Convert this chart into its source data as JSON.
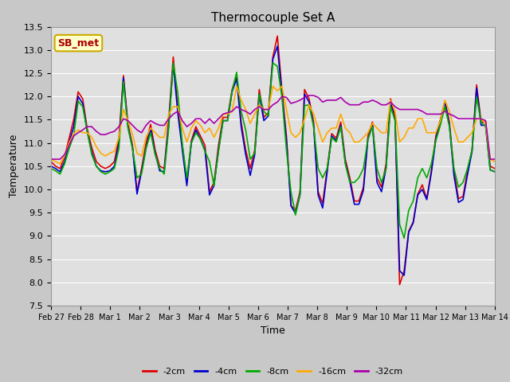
{
  "title": "Thermocouple Set A",
  "xlabel": "Time",
  "ylabel": "Temperature",
  "ylim": [
    7.5,
    13.5
  ],
  "fig_facecolor": "#c8c8c8",
  "plot_bg_color": "#e0e0e0",
  "annotation_text": "SB_met",
  "annotation_color": "#aa0000",
  "annotation_bg": "#ffffcc",
  "annotation_border": "#ccaa00",
  "series_colors": {
    "-2cm": "#dd0000",
    "-4cm": "#0000cc",
    "-8cm": "#00aa00",
    "-16cm": "#ffaa00",
    "-32cm": "#aa00aa"
  },
  "x_tick_labels": [
    "Feb 27",
    "Feb 28",
    "Mar 1",
    "Mar 2",
    "Mar 3",
    "Mar 4",
    "Mar 5",
    "Mar 6",
    "Mar 7",
    "Mar 8",
    "Mar 9",
    "Mar 10",
    "Mar 11",
    "Mar 12",
    "Mar 13",
    "Mar 14"
  ],
  "x_tick_positions": [
    0,
    1,
    2,
    3,
    4,
    5,
    6,
    7,
    8,
    9,
    10,
    11,
    12,
    13,
    14,
    15
  ],
  "y_ticks": [
    7.5,
    8.0,
    8.5,
    9.0,
    9.5,
    10.0,
    10.5,
    11.0,
    11.5,
    12.0,
    12.5,
    13.0,
    13.5
  ],
  "series": {
    "-2cm": [
      10.6,
      10.5,
      10.45,
      10.7,
      11.1,
      11.5,
      12.1,
      11.95,
      11.3,
      10.9,
      10.6,
      10.5,
      10.45,
      10.5,
      10.6,
      11.1,
      12.45,
      11.4,
      10.95,
      9.95,
      10.45,
      11.0,
      11.4,
      10.85,
      10.5,
      10.45,
      11.5,
      12.85,
      11.75,
      10.95,
      10.15,
      11.05,
      11.35,
      11.15,
      10.95,
      9.95,
      10.15,
      10.95,
      11.55,
      11.55,
      12.15,
      12.45,
      11.45,
      10.85,
      10.45,
      10.85,
      12.15,
      11.55,
      11.65,
      12.85,
      13.3,
      12.15,
      11.15,
      9.65,
      9.55,
      9.95,
      12.15,
      11.95,
      11.45,
      9.95,
      9.7,
      10.45,
      11.2,
      11.1,
      11.45,
      10.65,
      10.25,
      9.75,
      9.75,
      10.05,
      11.15,
      11.45,
      10.25,
      10.05,
      10.55,
      11.95,
      11.55,
      7.95,
      8.25,
      9.1,
      9.3,
      9.9,
      10.1,
      9.8,
      10.4,
      11.15,
      11.5,
      11.9,
      11.45,
      10.4,
      9.8,
      9.85,
      10.4,
      10.85,
      12.25,
      11.45,
      11.45,
      10.5,
      10.45
    ],
    "-4cm": [
      10.5,
      10.45,
      10.38,
      10.6,
      11.0,
      11.35,
      12.0,
      11.85,
      11.25,
      10.8,
      10.5,
      10.4,
      10.38,
      10.4,
      10.5,
      11.0,
      12.4,
      11.35,
      10.9,
      9.9,
      10.38,
      10.9,
      11.3,
      10.78,
      10.4,
      10.38,
      11.4,
      12.7,
      11.65,
      10.85,
      10.08,
      11.0,
      11.28,
      11.08,
      10.85,
      9.88,
      10.08,
      10.85,
      11.48,
      11.48,
      12.1,
      12.38,
      11.35,
      10.75,
      10.3,
      10.75,
      12.05,
      11.48,
      11.58,
      12.8,
      13.08,
      12.05,
      11.05,
      9.65,
      9.48,
      9.88,
      12.05,
      11.88,
      11.38,
      9.88,
      9.6,
      10.38,
      11.15,
      11.05,
      11.38,
      10.58,
      10.18,
      9.68,
      9.68,
      9.98,
      11.08,
      11.38,
      10.15,
      9.95,
      10.45,
      11.88,
      11.48,
      8.25,
      8.15,
      9.08,
      9.28,
      9.88,
      10.0,
      9.78,
      10.35,
      11.08,
      11.48,
      11.88,
      11.38,
      10.3,
      9.72,
      9.78,
      10.32,
      10.82,
      12.18,
      11.38,
      11.38,
      10.42,
      10.38
    ],
    "-8cm": [
      10.45,
      10.4,
      10.33,
      10.55,
      10.88,
      11.15,
      11.9,
      11.78,
      11.25,
      10.75,
      10.5,
      10.38,
      10.33,
      10.38,
      10.45,
      10.88,
      12.32,
      11.32,
      10.88,
      10.25,
      10.33,
      10.88,
      11.22,
      10.75,
      10.45,
      10.33,
      11.32,
      12.72,
      12.08,
      10.98,
      10.25,
      11.0,
      11.22,
      11.08,
      10.82,
      10.6,
      10.08,
      10.82,
      11.48,
      11.48,
      12.12,
      12.52,
      11.68,
      11.28,
      10.65,
      10.78,
      12.05,
      11.68,
      11.58,
      12.72,
      12.65,
      12.0,
      10.85,
      9.95,
      9.45,
      9.9,
      11.8,
      11.82,
      11.35,
      10.45,
      10.25,
      10.45,
      11.12,
      11.02,
      11.35,
      10.55,
      10.15,
      10.15,
      10.25,
      10.45,
      11.08,
      11.35,
      10.45,
      10.15,
      10.45,
      11.78,
      11.48,
      9.25,
      8.95,
      9.55,
      9.75,
      10.25,
      10.45,
      10.25,
      10.55,
      11.05,
      11.38,
      11.78,
      11.35,
      10.45,
      10.05,
      10.15,
      10.45,
      10.85,
      11.98,
      11.45,
      11.35,
      10.42,
      10.38
    ],
    "-16cm": [
      10.65,
      10.6,
      10.55,
      10.72,
      11.0,
      11.2,
      11.28,
      11.22,
      11.22,
      11.12,
      10.92,
      10.78,
      10.72,
      10.78,
      10.82,
      11.12,
      11.72,
      11.48,
      11.18,
      10.78,
      10.72,
      11.12,
      11.32,
      11.22,
      11.12,
      11.12,
      11.62,
      11.78,
      11.78,
      11.32,
      11.02,
      11.32,
      11.48,
      11.38,
      11.22,
      11.32,
      11.12,
      11.32,
      11.62,
      11.62,
      11.68,
      12.22,
      11.92,
      11.72,
      11.42,
      11.62,
      11.82,
      11.72,
      11.72,
      12.22,
      12.12,
      12.22,
      11.72,
      11.22,
      11.12,
      11.22,
      11.52,
      11.82,
      11.62,
      11.32,
      11.02,
      11.22,
      11.32,
      11.32,
      11.62,
      11.32,
      11.22,
      11.02,
      11.02,
      11.12,
      11.22,
      11.42,
      11.32,
      11.22,
      11.22,
      11.92,
      11.68,
      11.02,
      11.12,
      11.32,
      11.32,
      11.52,
      11.52,
      11.22,
      11.22,
      11.22,
      11.48,
      11.92,
      11.68,
      11.32,
      11.02,
      11.02,
      11.12,
      11.22,
      11.52,
      11.52,
      11.42,
      10.65,
      10.6
    ],
    "-32cm": [
      10.65,
      10.65,
      10.65,
      10.75,
      10.95,
      11.15,
      11.22,
      11.28,
      11.35,
      11.35,
      11.25,
      11.18,
      11.18,
      11.22,
      11.25,
      11.35,
      11.52,
      11.48,
      11.38,
      11.28,
      11.22,
      11.38,
      11.48,
      11.42,
      11.38,
      11.38,
      11.52,
      11.62,
      11.68,
      11.48,
      11.35,
      11.42,
      11.52,
      11.52,
      11.42,
      11.52,
      11.42,
      11.52,
      11.62,
      11.65,
      11.68,
      11.78,
      11.72,
      11.68,
      11.62,
      11.72,
      11.78,
      11.72,
      11.72,
      11.82,
      11.88,
      12.0,
      11.98,
      11.85,
      11.88,
      11.92,
      11.98,
      12.02,
      12.02,
      11.98,
      11.88,
      11.92,
      11.92,
      11.92,
      11.98,
      11.88,
      11.82,
      11.82,
      11.82,
      11.88,
      11.88,
      11.92,
      11.88,
      11.82,
      11.82,
      11.88,
      11.78,
      11.72,
      11.72,
      11.72,
      11.72,
      11.72,
      11.68,
      11.62,
      11.62,
      11.62,
      11.62,
      11.68,
      11.62,
      11.58,
      11.52,
      11.52,
      11.52,
      11.52,
      11.52,
      11.52,
      11.48,
      10.65,
      10.65
    ]
  }
}
